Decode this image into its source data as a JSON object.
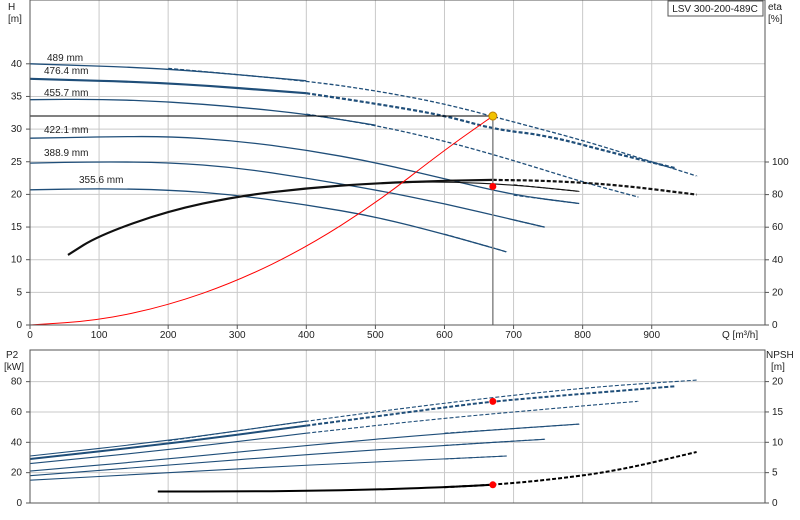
{
  "chart_data": [
    {
      "type": "line",
      "id": "head",
      "title_box": "LSV 300-200-489C",
      "left_axis": {
        "label_top": "H",
        "label_unit": "[m]",
        "range": [
          0,
          45
        ],
        "ticks": [
          0,
          5,
          10,
          15,
          20,
          25,
          30,
          35,
          40
        ]
      },
      "right_axis": {
        "label_top": "eta",
        "label_unit": "[%]",
        "range": [
          0,
          120
        ],
        "ticks": [
          0,
          20,
          40,
          60,
          80,
          100
        ]
      },
      "x_axis": {
        "label": "Q [m³/h]",
        "range": [
          0,
          1000
        ],
        "ticks": [
          0,
          100,
          200,
          300,
          400,
          500,
          600,
          700,
          800,
          900
        ]
      },
      "grid": true,
      "head_curves": [
        {
          "name": "489 mm",
          "color": "#1f4e79",
          "x": [
            0,
            200,
            400,
            500,
            600,
            700,
            800,
            900,
            965
          ],
          "y": [
            40.0,
            39.3,
            37.4,
            35.9,
            33.9,
            31.1,
            28.3,
            25.0,
            22.8
          ],
          "solid_until": 400
        },
        {
          "name": "476.4 mm",
          "color": "#1f4e79",
          "x": [
            0,
            200,
            400,
            500,
            600,
            670,
            750,
            850,
            935
          ],
          "y": [
            37.7,
            37.1,
            35.5,
            33.9,
            32.1,
            30.0,
            29.0,
            26.2,
            24.0
          ],
          "solid_until": 440,
          "bold": true
        },
        {
          "name": "455.7 mm",
          "color": "#1f4e79",
          "x": [
            0,
            100,
            200,
            300,
            400,
            500,
            600,
            700,
            800,
            880
          ],
          "y": [
            34.5,
            34.6,
            34.2,
            33.4,
            32.3,
            30.6,
            28.2,
            25.2,
            21.9,
            19.6
          ],
          "solid_until": 500
        },
        {
          "name": "422.1 mm",
          "color": "#1f4e79",
          "x": [
            0,
            100,
            200,
            300,
            400,
            500,
            600,
            700,
            795
          ],
          "y": [
            28.6,
            28.8,
            28.9,
            28.2,
            26.8,
            24.9,
            22.4,
            19.9,
            18.6
          ],
          "solid_until": 795
        },
        {
          "name": "388.9 mm",
          "color": "#1f4e79",
          "x": [
            0,
            100,
            200,
            300,
            400,
            500,
            600,
            700,
            745
          ],
          "y": [
            24.8,
            25.0,
            24.9,
            24.1,
            22.5,
            20.7,
            18.6,
            16.1,
            15.0
          ],
          "solid_until": 745
        },
        {
          "name": "355.6 mm",
          "color": "#1f4e79",
          "x": [
            0,
            100,
            200,
            300,
            400,
            500,
            600,
            690
          ],
          "y": [
            20.7,
            20.9,
            20.7,
            19.9,
            18.4,
            16.6,
            13.9,
            11.2
          ],
          "solid_until": 690
        }
      ],
      "efficiency_curves": [
        {
          "x": [
            55,
            100,
            200,
            300,
            400,
            500,
            600,
            670,
            750,
            850,
            965
          ],
          "y": [
            43,
            55,
            70,
            79,
            84,
            87,
            88.5,
            89,
            88.5,
            86,
            80
          ],
          "solid_until": 680
        },
        {
          "x": [
            55,
            100,
            200,
            300,
            400,
            500,
            600,
            700,
            795
          ],
          "y": [
            43,
            55,
            70,
            79,
            84,
            87,
            88,
            86,
            82
          ],
          "solid_until": 795
        }
      ],
      "system_curve": {
        "color": "#ff0000",
        "x": [
          0,
          100,
          200,
          300,
          400,
          500,
          600,
          670
        ],
        "y": [
          0,
          0.7,
          3.0,
          6.7,
          11.9,
          18.6,
          26.8,
          32.0
        ]
      },
      "duty_point": {
        "x": 670,
        "y": 32.0,
        "color": "#f2c200"
      },
      "eff_point": {
        "x": 670,
        "y": 85,
        "color": "#ff0000"
      },
      "diameter_labels": [
        "489 mm",
        "476.4 mm",
        "455.7 mm",
        "422.1 mm",
        "388.9 mm",
        "355.6 mm"
      ]
    },
    {
      "type": "line",
      "id": "power",
      "left_axis": {
        "label_top": "P2",
        "label_unit": "[kW]",
        "range": [
          0,
          90
        ],
        "ticks": [
          0,
          20,
          40,
          60,
          80
        ]
      },
      "right_axis": {
        "label_top": "NPSH",
        "label_unit": "[m]",
        "range": [
          0,
          22.5
        ],
        "ticks": [
          0,
          5,
          10,
          15,
          20
        ]
      },
      "x_axis": {
        "range": [
          0,
          1000
        ],
        "ticks": [
          0,
          100,
          200,
          300,
          400,
          500,
          600,
          700,
          800,
          900
        ]
      },
      "grid": true,
      "power_curves": [
        {
          "x": [
            0,
            200,
            400,
            600,
            800,
            965
          ],
          "y": [
            31,
            41,
            54,
            66,
            76,
            81
          ],
          "solid_until": 400
        },
        {
          "x": [
            0,
            200,
            400,
            600,
            670,
            800,
            935
          ],
          "y": [
            29,
            39,
            51,
            63,
            67,
            72,
            77
          ],
          "solid_until": 440,
          "bold": true
        },
        {
          "x": [
            0,
            200,
            400,
            600,
            800,
            880
          ],
          "y": [
            26,
            35,
            46,
            56,
            64,
            67
          ],
          "solid_until": 500
        },
        {
          "x": [
            0,
            200,
            400,
            600,
            795
          ],
          "y": [
            21,
            29,
            38,
            46,
            52
          ],
          "solid_until": 795
        },
        {
          "x": [
            0,
            200,
            400,
            600,
            745
          ],
          "y": [
            18,
            25,
            32,
            38,
            42
          ],
          "solid_until": 745
        },
        {
          "x": [
            0,
            200,
            400,
            600,
            690
          ],
          "y": [
            15,
            20,
            25,
            29,
            31
          ],
          "solid_until": 690
        }
      ],
      "npsh_curve": {
        "x": [
          185,
          300,
          400,
          500,
          600,
          670,
          750,
          850,
          965
        ],
        "y": [
          1.9,
          1.9,
          2.0,
          2.2,
          2.6,
          3.0,
          3.8,
          5.3,
          8.4
        ],
        "solid_until": 670
      },
      "power_point": {
        "x": 670,
        "y": 67,
        "color": "#ff0000"
      },
      "npsh_point": {
        "x": 670,
        "y": 3.0,
        "color": "#ff0000"
      }
    }
  ]
}
